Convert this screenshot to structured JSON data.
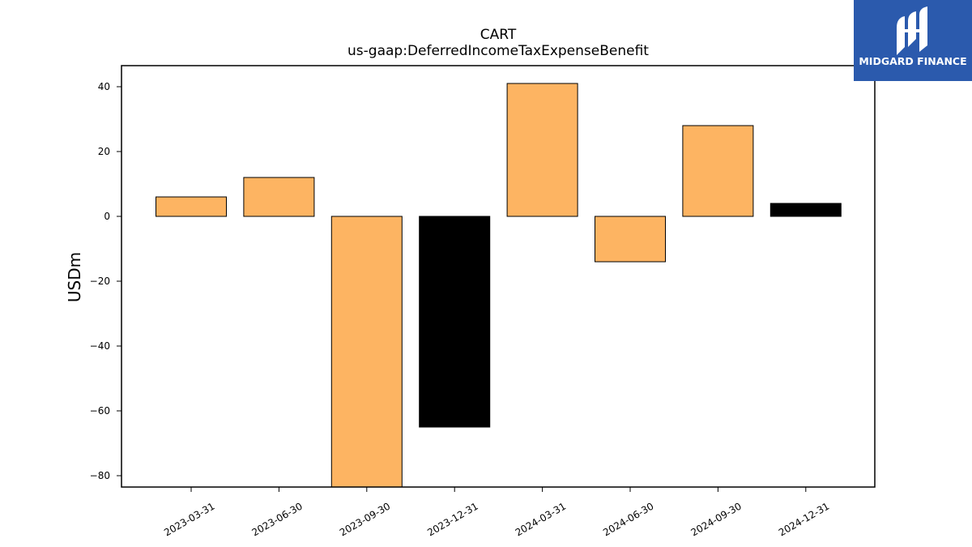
{
  "chart_data": {
    "type": "bar",
    "title": "CART",
    "subtitle": "us-gaap:DeferredIncomeTaxExpenseBenefit",
    "xlabel": "",
    "ylabel": "USDm",
    "categories": [
      "2023-03-31",
      "2023-06-30",
      "2023-09-30",
      "2023-12-31",
      "2024-03-31",
      "2024-06-30",
      "2024-09-30",
      "2024-12-31"
    ],
    "values": [
      6,
      12,
      -84,
      -65,
      41,
      -14,
      28,
      4
    ],
    "bar_colors": [
      "#fdb462",
      "#fdb462",
      "#fdb462",
      "#000000",
      "#fdb462",
      "#fdb462",
      "#fdb462",
      "#000000"
    ],
    "yticks": [
      40,
      20,
      0,
      -20,
      -40,
      -60,
      -80
    ],
    "ytick_labels": [
      "40",
      "20",
      "0",
      "−20",
      "−40",
      "−60",
      "−80"
    ],
    "ylim": [
      -83.5,
      46.5
    ],
    "grid": false,
    "legend": "none"
  },
  "logo": {
    "text": "MIDGARD FINANCE",
    "icon": "midgard-logo-icon",
    "background": "#2b5aad"
  }
}
